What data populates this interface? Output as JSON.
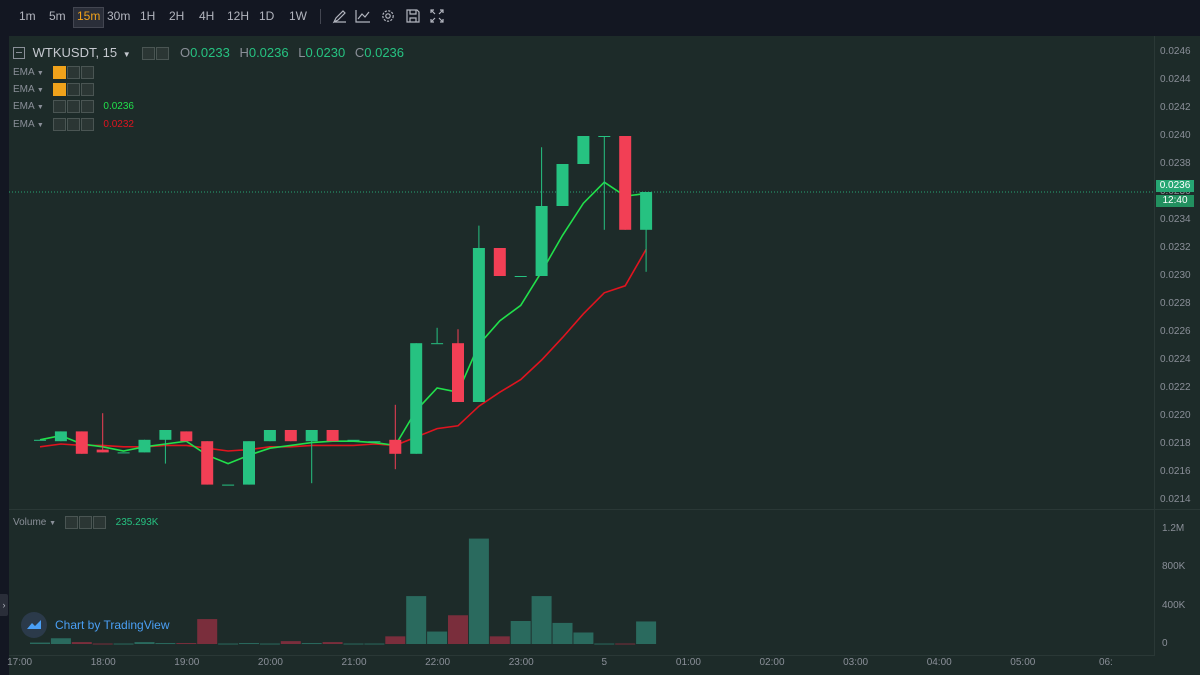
{
  "toolbar": {
    "timeframes": [
      "1m",
      "5m",
      "15m",
      "30m",
      "1H",
      "2H",
      "4H",
      "12H",
      "1D",
      "1W"
    ],
    "active_timeframe": "15m",
    "tools": [
      "draw-icon",
      "indicator-icon",
      "settings-icon",
      "save-icon",
      "fullscreen-icon"
    ]
  },
  "legend": {
    "symbol": "WTKUSDT, 15",
    "o_label": "O",
    "o_value": "0.0233",
    "h_label": "H",
    "h_value": "0.0236",
    "l_label": "L",
    "l_value": "0.0230",
    "c_label": "C",
    "c_value": "0.0236",
    "ema": [
      {
        "label": "EMA",
        "value": ""
      },
      {
        "label": "EMA",
        "value": ""
      },
      {
        "label": "EMA",
        "value": "0.0236"
      },
      {
        "label": "EMA",
        "value": "0.0232"
      }
    ],
    "volume_label": "Volume",
    "volume_value": "235.293K"
  },
  "branding": "Chart by TradingView",
  "colors": {
    "up": "#26c281",
    "down": "#f23f55",
    "ema_fast": "#21e04b",
    "ema_slow": "#e0141f",
    "vol_up": "#2a6a5e",
    "vol_down": "#7a2e3c",
    "last_price_line": "#26a673"
  },
  "chart_data": {
    "type": "candlestick",
    "symbol": "WTKUSDT",
    "interval": "15",
    "price_axis": {
      "ticks": [
        "0.0246",
        "0.0244",
        "0.0242",
        "0.0240",
        "0.0238",
        "0.0236",
        "0.0234",
        "0.0232",
        "0.0230",
        "0.0228",
        "0.0226",
        "0.0224",
        "0.0222",
        "0.0220",
        "0.0218",
        "0.0216",
        "0.0214"
      ],
      "range": [
        0.02128,
        0.02466
      ]
    },
    "volume_axis": {
      "ticks": [
        "1.2M",
        "800K",
        "400K",
        "0"
      ],
      "values": [
        1200000,
        800000,
        400000,
        0
      ]
    },
    "time_axis": {
      "ticks": [
        "17:00",
        "18:00",
        "19:00",
        "20:00",
        "21:00",
        "22:00",
        "23:00",
        "5",
        "01:00",
        "02:00",
        "03:00",
        "04:00",
        "05:00",
        "06:"
      ],
      "tick_index": [
        0,
        4,
        8,
        12,
        16,
        20,
        24,
        28,
        32,
        36,
        40,
        44,
        48,
        52
      ],
      "first_bar_index": -1
    },
    "last_price": "0.0236",
    "countdown": "12:40",
    "candles": [
      {
        "o": 0.02183,
        "h": 0.02183,
        "l": 0.02183,
        "c": 0.02183,
        "v": 15000
      },
      {
        "o": 0.02182,
        "h": 0.02189,
        "l": 0.02182,
        "c": 0.02189,
        "v": 60000
      },
      {
        "o": 0.02189,
        "h": 0.02189,
        "l": 0.02173,
        "c": 0.02173,
        "v": 20000
      },
      {
        "o": 0.02176,
        "h": 0.02202,
        "l": 0.02174,
        "c": 0.02174,
        "v": 5000
      },
      {
        "o": 0.02174,
        "h": 0.02174,
        "l": 0.02174,
        "c": 0.02174,
        "v": 5000
      },
      {
        "o": 0.02174,
        "h": 0.02183,
        "l": 0.02174,
        "c": 0.02183,
        "v": 20000
      },
      {
        "o": 0.02183,
        "h": 0.0219,
        "l": 0.02166,
        "c": 0.0219,
        "v": 10000
      },
      {
        "o": 0.02189,
        "h": 0.02189,
        "l": 0.02182,
        "c": 0.02182,
        "v": 10000
      },
      {
        "o": 0.02182,
        "h": 0.02182,
        "l": 0.02151,
        "c": 0.02151,
        "v": 260000
      },
      {
        "o": 0.02151,
        "h": 0.02151,
        "l": 0.02151,
        "c": 0.02151,
        "v": 5000
      },
      {
        "o": 0.02151,
        "h": 0.02182,
        "l": 0.02151,
        "c": 0.02182,
        "v": 10000
      },
      {
        "o": 0.02182,
        "h": 0.0219,
        "l": 0.02182,
        "c": 0.0219,
        "v": 5000
      },
      {
        "o": 0.0219,
        "h": 0.0219,
        "l": 0.02182,
        "c": 0.02182,
        "v": 30000
      },
      {
        "o": 0.02182,
        "h": 0.0219,
        "l": 0.02152,
        "c": 0.0219,
        "v": 10000
      },
      {
        "o": 0.0219,
        "h": 0.0219,
        "l": 0.02182,
        "c": 0.02182,
        "v": 20000
      },
      {
        "o": 0.02183,
        "h": 0.02183,
        "l": 0.02183,
        "c": 0.02183,
        "v": 5000
      },
      {
        "o": 0.02182,
        "h": 0.02182,
        "l": 0.02182,
        "c": 0.02182,
        "v": 5000
      },
      {
        "o": 0.02183,
        "h": 0.02208,
        "l": 0.02162,
        "c": 0.02173,
        "v": 80000
      },
      {
        "o": 0.02173,
        "h": 0.02252,
        "l": 0.02173,
        "c": 0.02252,
        "v": 500000
      },
      {
        "o": 0.02252,
        "h": 0.02263,
        "l": 0.02252,
        "c": 0.02252,
        "v": 130000
      },
      {
        "o": 0.02252,
        "h": 0.02262,
        "l": 0.0221,
        "c": 0.0221,
        "v": 300000
      },
      {
        "o": 0.0221,
        "h": 0.02336,
        "l": 0.0221,
        "c": 0.0232,
        "v": 1100000
      },
      {
        "o": 0.0232,
        "h": 0.0232,
        "l": 0.023,
        "c": 0.023,
        "v": 80000
      },
      {
        "o": 0.023,
        "h": 0.023,
        "l": 0.023,
        "c": 0.023,
        "v": 240000
      },
      {
        "o": 0.023,
        "h": 0.02392,
        "l": 0.023,
        "c": 0.0235,
        "v": 500000
      },
      {
        "o": 0.0235,
        "h": 0.0238,
        "l": 0.0235,
        "c": 0.0238,
        "v": 220000
      },
      {
        "o": 0.0238,
        "h": 0.024,
        "l": 0.0238,
        "c": 0.024,
        "v": 120000
      },
      {
        "o": 0.024,
        "h": 0.024,
        "l": 0.02333,
        "c": 0.024,
        "v": 5000
      },
      {
        "o": 0.024,
        "h": 0.024,
        "l": 0.02333,
        "c": 0.02333,
        "v": 5000
      },
      {
        "o": 0.02333,
        "h": 0.0236,
        "l": 0.02303,
        "c": 0.0236,
        "v": 235293
      }
    ],
    "ema_fast": [
      0.02183,
      0.02186,
      0.0218,
      0.02178,
      0.02175,
      0.02178,
      0.0218,
      0.02182,
      0.02172,
      0.02166,
      0.02172,
      0.02177,
      0.02179,
      0.02181,
      0.02182,
      0.02182,
      0.02181,
      0.02179,
      0.02204,
      0.0222,
      0.02217,
      0.02251,
      0.02268,
      0.02279,
      0.02303,
      0.02329,
      0.02352,
      0.02367,
      0.02357,
      0.02359
    ],
    "ema_slow": [
      0.02178,
      0.0218,
      0.02179,
      0.02179,
      0.02178,
      0.02178,
      0.02179,
      0.02179,
      0.02177,
      0.02175,
      0.02176,
      0.02178,
      0.02178,
      0.02179,
      0.02179,
      0.02179,
      0.0218,
      0.02179,
      0.02185,
      0.02191,
      0.02193,
      0.02207,
      0.02217,
      0.02226,
      0.0224,
      0.02256,
      0.02273,
      0.02288,
      0.02293,
      0.02319
    ]
  }
}
